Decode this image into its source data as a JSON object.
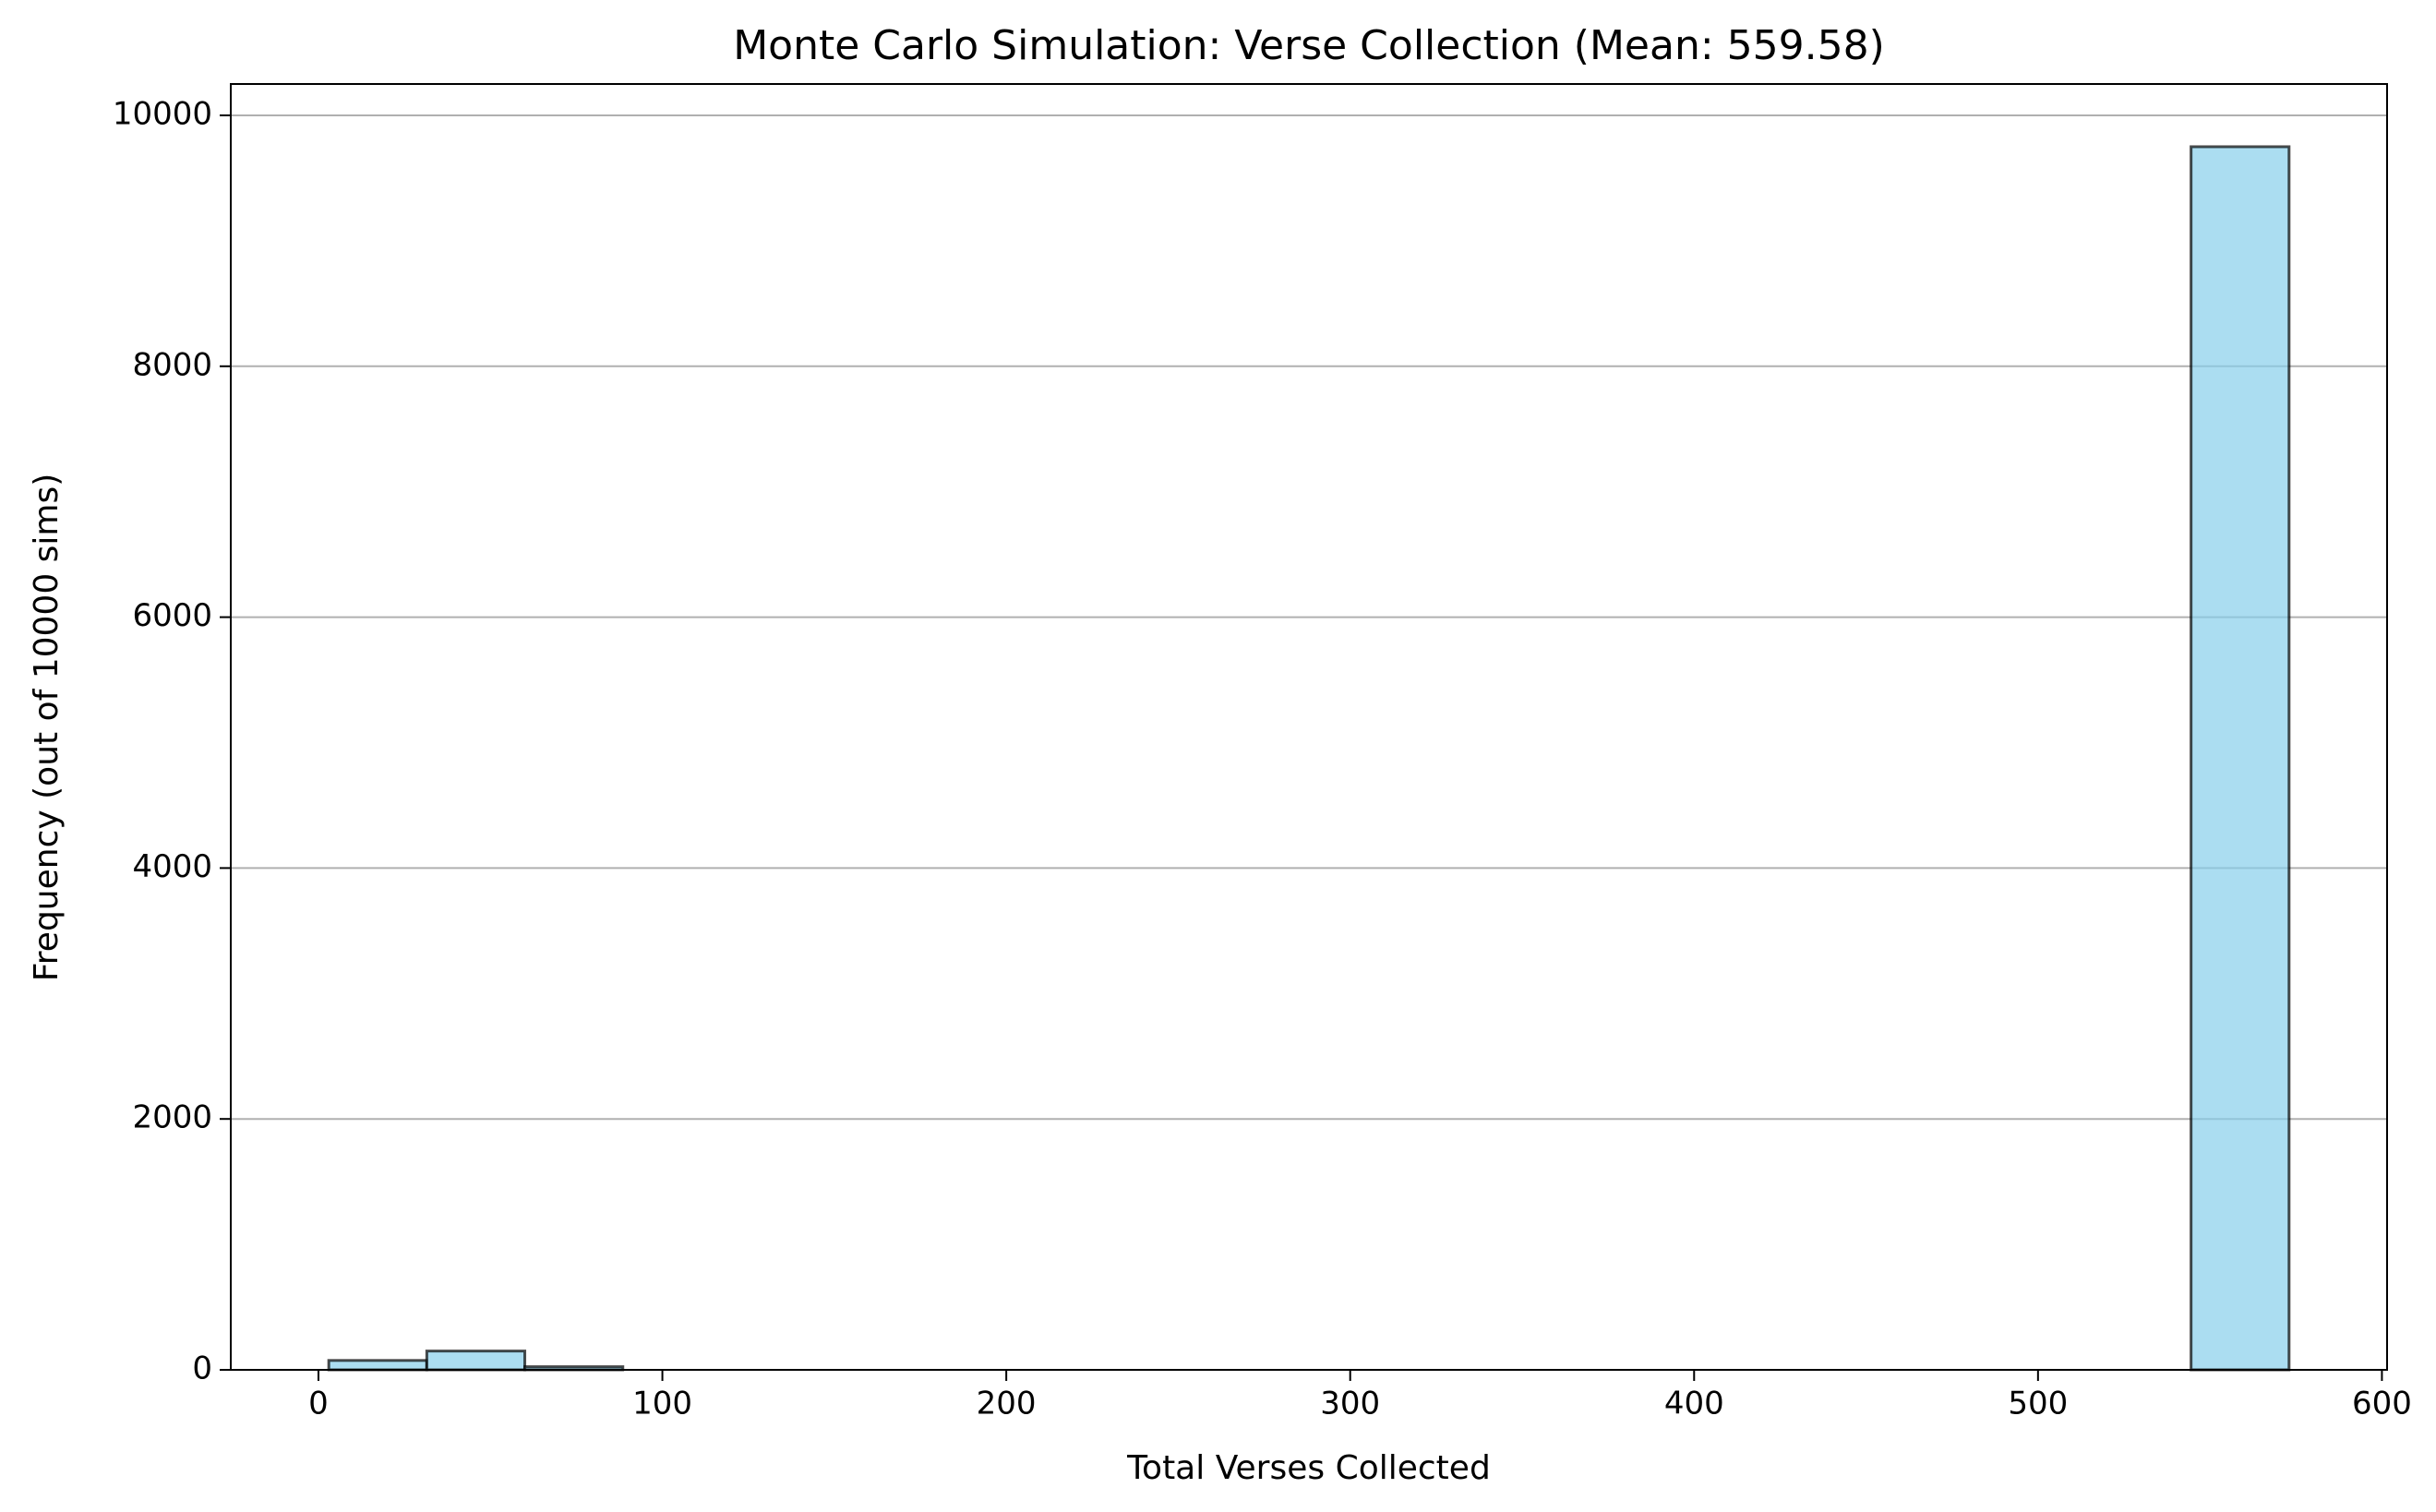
{
  "chart_data": {
    "type": "histogram",
    "title": "Monte Carlo Simulation: Verse Collection (Mean: 559.58)",
    "x_label": "Total Verses Collected",
    "y_label": "Frequency (out of 10000 sims)",
    "bins": [
      3,
      31.5,
      60,
      88.5,
      117,
      145.5,
      174,
      202.5,
      231,
      259.5,
      288,
      316.5,
      345,
      373.5,
      402,
      430.5,
      459,
      487.5,
      516,
      544.5,
      573
    ],
    "values": [
      75,
      150,
      25,
      0,
      0,
      0,
      0,
      0,
      0,
      0,
      0,
      0,
      0,
      0,
      0,
      0,
      0,
      0,
      0,
      9750
    ],
    "color": "#87ceeb",
    "edge_color": "#000000",
    "xlim": [
      -25.5,
      601.5
    ],
    "ylim": [
      0,
      10250
    ],
    "xticks": [
      0,
      100,
      200,
      300,
      400,
      500,
      600
    ],
    "yticks": [
      0,
      2000,
      4000,
      6000,
      8000,
      10000
    ],
    "grid": "y"
  }
}
